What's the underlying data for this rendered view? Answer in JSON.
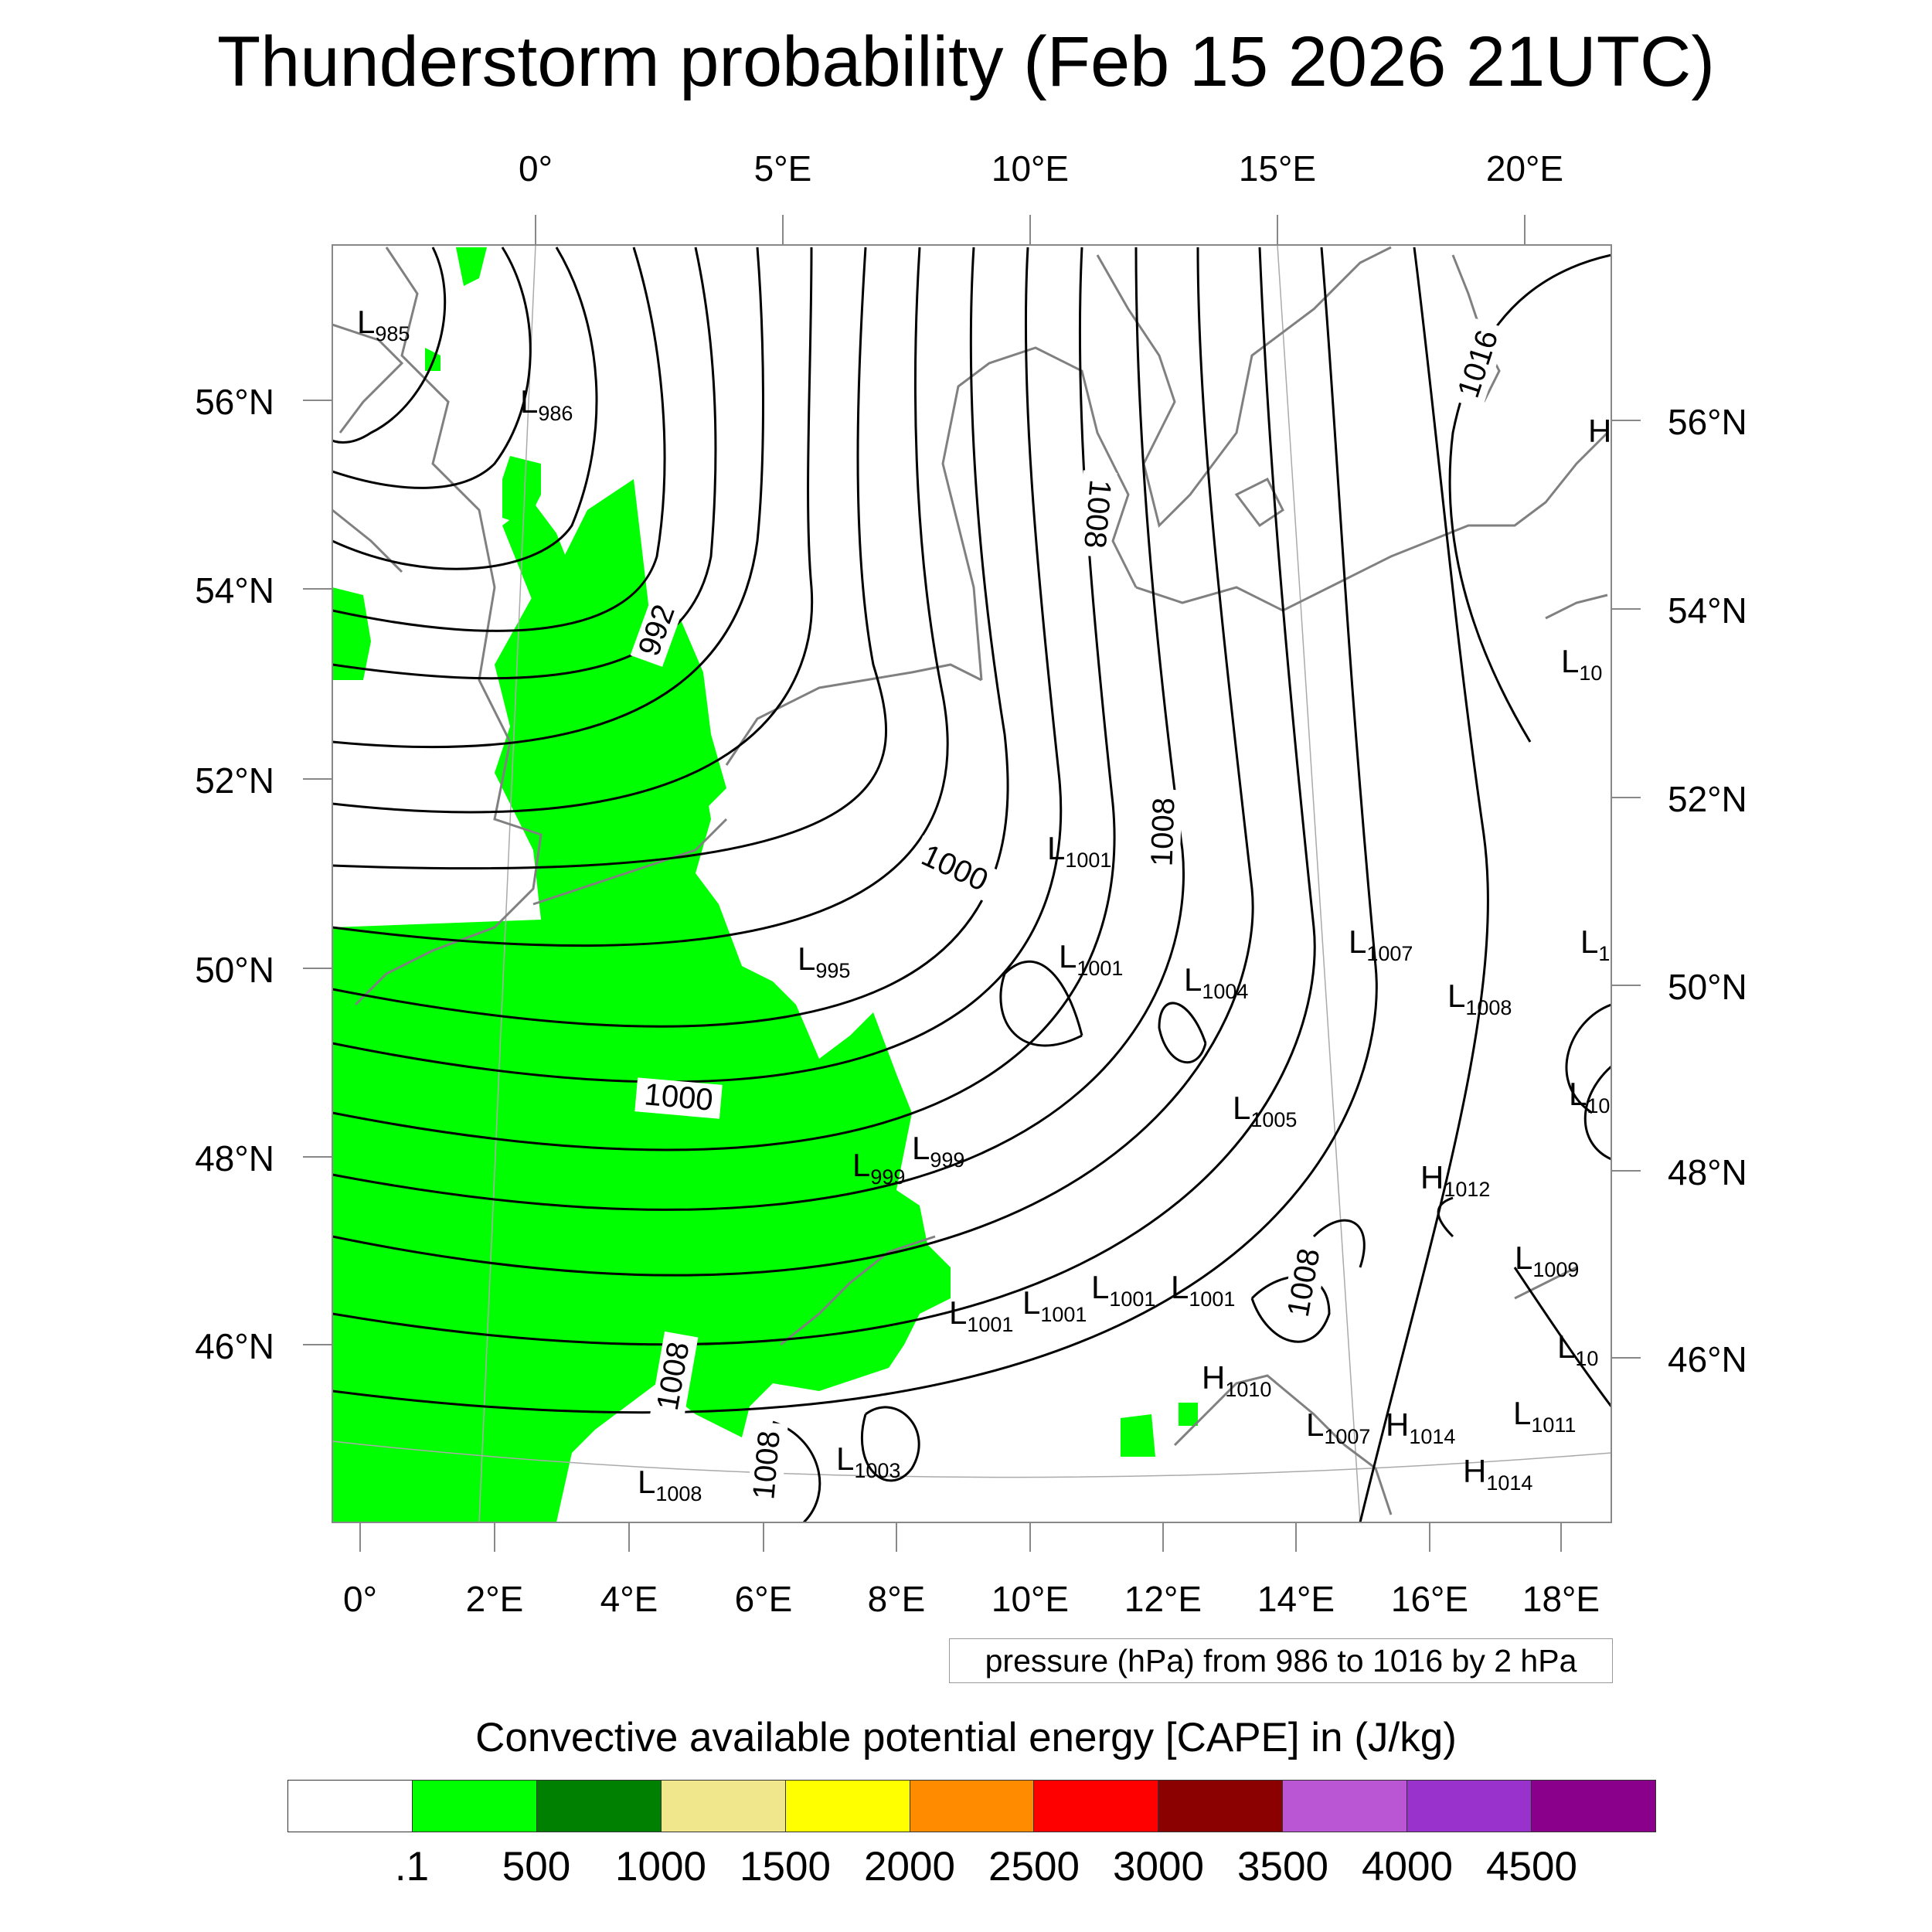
{
  "title": "Thunderstorm probability (Feb 15 2026 21UTC)",
  "top_lon_labels": [
    "0°",
    "5°E",
    "10°E",
    "15°E",
    "20°E"
  ],
  "bottom_lon_labels": [
    "0°",
    "2°E",
    "4°E",
    "6°E",
    "8°E",
    "10°E",
    "12°E",
    "14°E",
    "16°E",
    "18°E"
  ],
  "left_lat_labels": [
    "56°N",
    "54°N",
    "52°N",
    "50°N",
    "48°N",
    "46°N"
  ],
  "right_lat_labels": [
    "56°N",
    "54°N",
    "52°N",
    "50°N",
    "48°N",
    "46°N"
  ],
  "contour_labels": [
    "992",
    "1000",
    "1000",
    "1008",
    "1008",
    "1008",
    "1008",
    "1008",
    "1016"
  ],
  "pressure_centers": [
    {
      "type": "L",
      "value": "985"
    },
    {
      "type": "L",
      "value": "986"
    },
    {
      "type": "L",
      "value": "995"
    },
    {
      "type": "L",
      "value": "1001"
    },
    {
      "type": "L",
      "value": "1001"
    },
    {
      "type": "L",
      "value": "1004"
    },
    {
      "type": "L",
      "value": "1007"
    },
    {
      "type": "L",
      "value": "1008"
    },
    {
      "type": "L",
      "value": "1005"
    },
    {
      "type": "L",
      "value": "999"
    },
    {
      "type": "L",
      "value": "999"
    },
    {
      "type": "H",
      "value": "1012"
    },
    {
      "type": "L",
      "value": "1009"
    },
    {
      "type": "L",
      "value": "1001"
    },
    {
      "type": "L",
      "value": "1001"
    },
    {
      "type": "L",
      "value": "1001"
    },
    {
      "type": "L",
      "value": "1001"
    },
    {
      "type": "H",
      "value": "1010"
    },
    {
      "type": "L",
      "value": "1007"
    },
    {
      "type": "H",
      "value": "1014"
    },
    {
      "type": "L",
      "value": "1011"
    },
    {
      "type": "H",
      "value": "1014"
    },
    {
      "type": "L",
      "value": "1003"
    },
    {
      "type": "L",
      "value": "1008"
    },
    {
      "type": "L",
      "value": "10"
    },
    {
      "type": "L",
      "value": "10"
    },
    {
      "type": "L",
      "value": "10"
    },
    {
      "type": "L",
      "value": "1"
    },
    {
      "type": "H",
      "value": ""
    }
  ],
  "pressure_note": "pressure (hPa) from 986 to 1016 by 2 hPa",
  "cape": {
    "label": "Convective available potential energy [CAPE] in (J/kg)",
    "colors": [
      "#ffffff",
      "#00ff00",
      "#008000",
      "#f0e68c",
      "#ffff00",
      "#ff8c00",
      "#ff0000",
      "#8b0000",
      "#ba55d3",
      "#9932cc",
      "#8b008b"
    ],
    "ticks": [
      ".1",
      "500",
      "1000",
      "1500",
      "2000",
      "2500",
      "3000",
      "3500",
      "4000",
      "4500"
    ]
  },
  "colors": {
    "cape_green": "#00ff00",
    "isobar": "#000000",
    "coast": "#808080"
  }
}
